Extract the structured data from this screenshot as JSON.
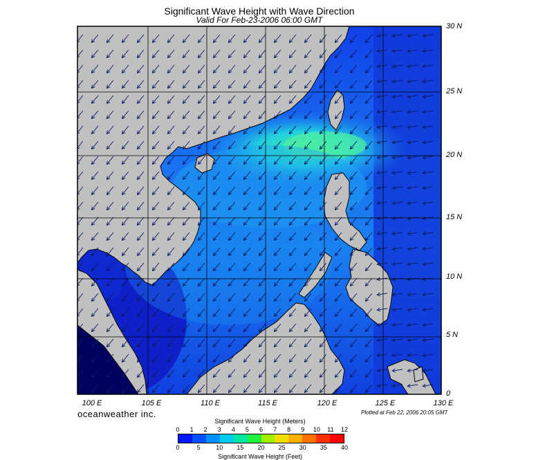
{
  "title": "Significant Wave Height with Wave Direction",
  "subtitle": "Valid For Feb-23-2006 06:00 GMT",
  "lat_labels": [
    "30 N",
    "25 N",
    "20 N",
    "15 N",
    "10 N",
    "5 N",
    "0"
  ],
  "lon_labels": [
    "100 E",
    "105 E",
    "110 E",
    "115 E",
    "120 E",
    "125 E",
    "130 E"
  ],
  "brand": "oceanweather inc.",
  "plotted": "Plotted at Feb 22, 2006 20:05 GMT",
  "colorbar": {
    "meters_title": "Significant Wave Height (Meters)",
    "feet_title": "Significant Wave Height (Feet)",
    "meters_ticks": [
      "0",
      "1",
      "2",
      "3",
      "4",
      "5",
      "6",
      "7",
      "8",
      "9",
      "10",
      "11",
      "12"
    ],
    "feet_ticks": [
      "0",
      "5",
      "10",
      "15",
      "20",
      "25",
      "30",
      "35",
      "40"
    ],
    "colors": [
      "#0018ff",
      "#0050ff",
      "#0090ff",
      "#00ccee",
      "#00e8a0",
      "#20f040",
      "#a0f000",
      "#f0e000",
      "#ffb000",
      "#ff7000",
      "#ff3000",
      "#ff0000"
    ]
  },
  "colors": {
    "land": "#c0c0c0",
    "sea_dark": "#1020d0",
    "sea_mid": "#1060f0",
    "sea_light": "#20b0f0",
    "sea_peak": "#30f0a0"
  }
}
